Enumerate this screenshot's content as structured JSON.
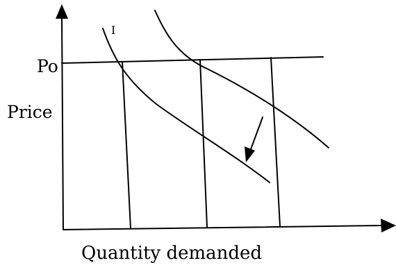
{
  "labels": {
    "price_level": "Po",
    "y_axis": "Price",
    "x_axis": "Quantity demanded",
    "curve_mark": "I"
  },
  "colors": {
    "stroke": "#000000",
    "background": "#ffffff"
  }
}
